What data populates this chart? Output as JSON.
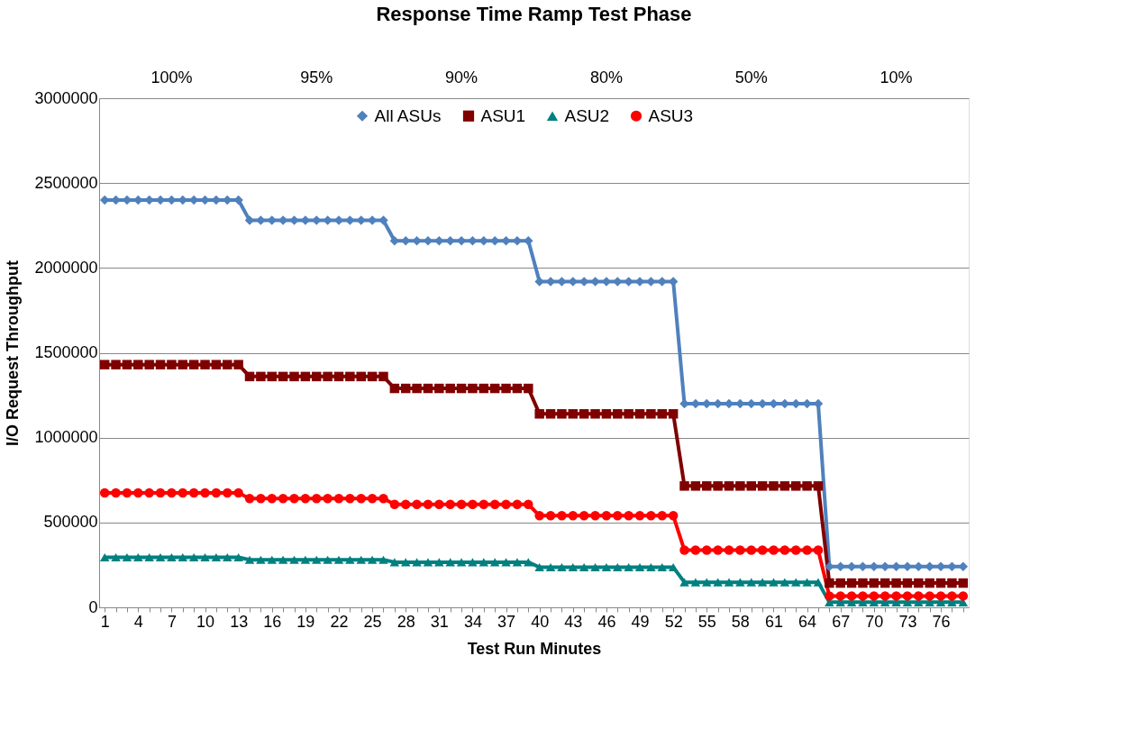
{
  "chart_data": {
    "type": "line",
    "title": "Response Time Ramp Test Phase",
    "xlabel": "Test Run Minutes",
    "ylabel": "I/O Request Throughput",
    "categories": [
      "1",
      null,
      null,
      "4",
      null,
      null,
      "7",
      null,
      null,
      "10",
      null,
      null,
      "13",
      null,
      null,
      "16",
      null,
      null,
      "19",
      null,
      null,
      "22",
      null,
      null,
      "25",
      null,
      null,
      "28",
      null,
      null,
      "31",
      null,
      null,
      "34",
      null,
      null,
      "37",
      null,
      null,
      "40",
      null,
      null,
      "43",
      null,
      null,
      "46",
      null,
      null,
      "49",
      null,
      null,
      "52",
      null,
      null,
      "55",
      null,
      null,
      "58",
      null,
      null,
      "61",
      null,
      null,
      "64",
      null,
      null,
      "67",
      null,
      null,
      "70",
      null,
      null,
      "73",
      null,
      null,
      "76",
      null,
      null
    ],
    "series": [
      {
        "name": "All ASUs",
        "color": "#4f81bd",
        "marker": "diamond",
        "values": [
          2400000,
          2400000,
          2400000,
          2400000,
          2400000,
          2400000,
          2400000,
          2400000,
          2400000,
          2400000,
          2400000,
          2400000,
          2400000,
          2280000,
          2280000,
          2280000,
          2280000,
          2280000,
          2280000,
          2280000,
          2280000,
          2280000,
          2280000,
          2280000,
          2280000,
          2280000,
          2160000,
          2160000,
          2160000,
          2160000,
          2160000,
          2160000,
          2160000,
          2160000,
          2160000,
          2160000,
          2160000,
          2160000,
          2160000,
          1920000,
          1920000,
          1920000,
          1920000,
          1920000,
          1920000,
          1920000,
          1920000,
          1920000,
          1920000,
          1920000,
          1920000,
          1920000,
          1200000,
          1200000,
          1200000,
          1200000,
          1200000,
          1200000,
          1200000,
          1200000,
          1200000,
          1200000,
          1200000,
          1200000,
          1200000,
          240000,
          240000,
          240000,
          240000,
          240000,
          240000,
          240000,
          240000,
          240000,
          240000,
          240000,
          240000,
          240000
        ]
      },
      {
        "name": "ASU1",
        "color": "#800000",
        "marker": "square",
        "values": [
          1430000,
          1430000,
          1430000,
          1430000,
          1430000,
          1430000,
          1430000,
          1430000,
          1430000,
          1430000,
          1430000,
          1430000,
          1430000,
          1360000,
          1360000,
          1360000,
          1360000,
          1360000,
          1360000,
          1360000,
          1360000,
          1360000,
          1360000,
          1360000,
          1360000,
          1360000,
          1290000,
          1290000,
          1290000,
          1290000,
          1290000,
          1290000,
          1290000,
          1290000,
          1290000,
          1290000,
          1290000,
          1290000,
          1290000,
          1140000,
          1140000,
          1140000,
          1140000,
          1140000,
          1140000,
          1140000,
          1140000,
          1140000,
          1140000,
          1140000,
          1140000,
          1140000,
          715000,
          715000,
          715000,
          715000,
          715000,
          715000,
          715000,
          715000,
          715000,
          715000,
          715000,
          715000,
          715000,
          143000,
          143000,
          143000,
          143000,
          143000,
          143000,
          143000,
          143000,
          143000,
          143000,
          143000,
          143000,
          143000
        ]
      },
      {
        "name": "ASU2",
        "color": "#008080",
        "marker": "triangle",
        "values": [
          295000,
          295000,
          295000,
          295000,
          295000,
          295000,
          295000,
          295000,
          295000,
          295000,
          295000,
          295000,
          295000,
          280000,
          280000,
          280000,
          280000,
          280000,
          280000,
          280000,
          280000,
          280000,
          280000,
          280000,
          280000,
          280000,
          266000,
          266000,
          266000,
          266000,
          266000,
          266000,
          266000,
          266000,
          266000,
          266000,
          266000,
          266000,
          266000,
          236000,
          236000,
          236000,
          236000,
          236000,
          236000,
          236000,
          236000,
          236000,
          236000,
          236000,
          236000,
          236000,
          148000,
          148000,
          148000,
          148000,
          148000,
          148000,
          148000,
          148000,
          148000,
          148000,
          148000,
          148000,
          148000,
          30000,
          30000,
          30000,
          30000,
          30000,
          30000,
          30000,
          30000,
          30000,
          30000,
          30000,
          30000,
          30000
        ]
      },
      {
        "name": "ASU3",
        "color": "#ff0000",
        "marker": "circle",
        "values": [
          674000,
          674000,
          674000,
          674000,
          674000,
          674000,
          674000,
          674000,
          674000,
          674000,
          674000,
          674000,
          674000,
          641000,
          641000,
          641000,
          641000,
          641000,
          641000,
          641000,
          641000,
          641000,
          641000,
          641000,
          641000,
          641000,
          607000,
          607000,
          607000,
          607000,
          607000,
          607000,
          607000,
          607000,
          607000,
          607000,
          607000,
          607000,
          607000,
          540000,
          540000,
          540000,
          540000,
          540000,
          540000,
          540000,
          540000,
          540000,
          540000,
          540000,
          540000,
          540000,
          337000,
          337000,
          337000,
          337000,
          337000,
          337000,
          337000,
          337000,
          337000,
          337000,
          337000,
          337000,
          337000,
          67000,
          67000,
          67000,
          67000,
          67000,
          67000,
          67000,
          67000,
          67000,
          67000,
          67000,
          67000,
          67000
        ]
      }
    ],
    "ylim": [
      0,
      3000000
    ],
    "yticks": [
      0,
      500000,
      1000000,
      1500000,
      2000000,
      2500000,
      3000000
    ],
    "grid": "y",
    "legend": "top",
    "line_style": "solid",
    "annotations": [
      "100%",
      "95%",
      "90%",
      "80%",
      "50%",
      "10%"
    ]
  }
}
